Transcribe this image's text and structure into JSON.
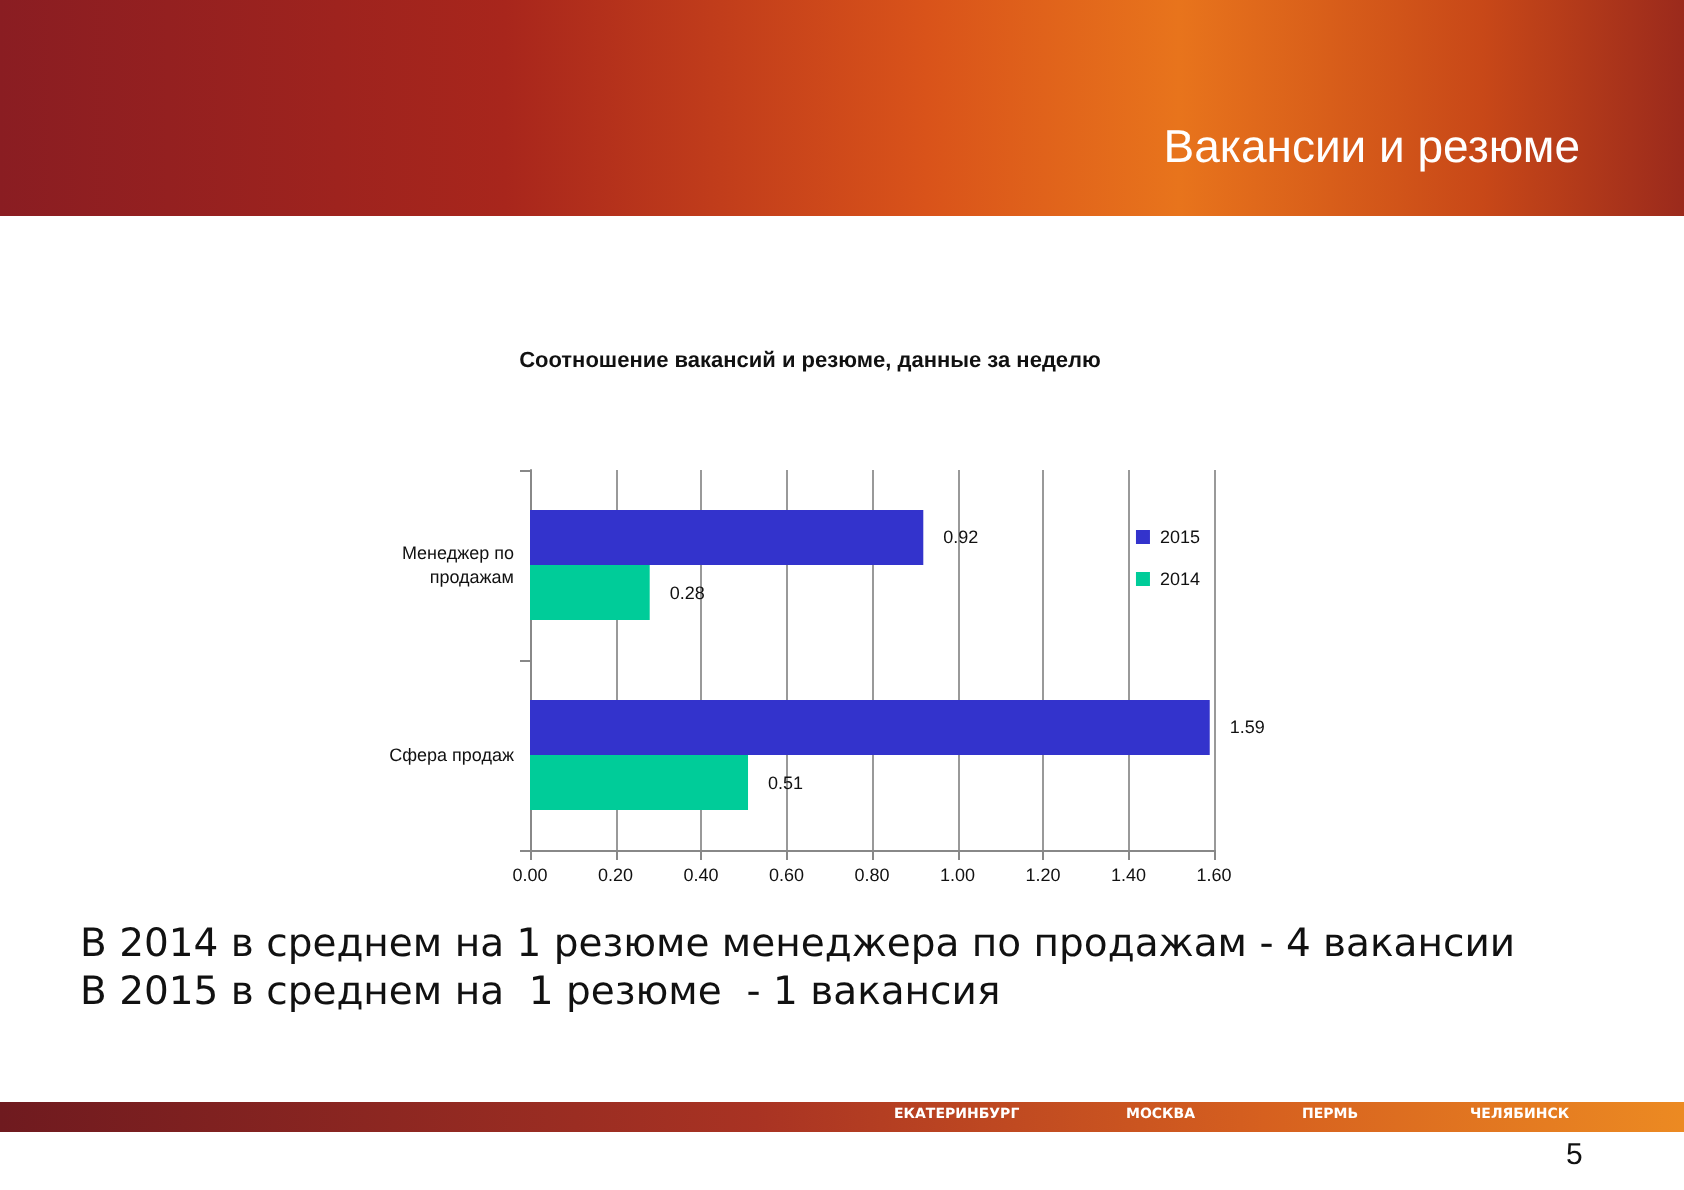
{
  "chart_data": {
    "type": "bar",
    "orientation": "horizontal",
    "title": "Соотношение вакансий и резюме, данные за неделю",
    "categories": [
      "Менеджер по продажам",
      "Сфера продаж"
    ],
    "series": [
      {
        "name": "2015",
        "color": "#3333cc",
        "values": [
          0.92,
          1.59
        ]
      },
      {
        "name": "2014",
        "color": "#00cc99",
        "values": [
          0.28,
          0.51
        ]
      }
    ],
    "xlim": [
      0,
      1.6
    ],
    "xticks": [
      {
        "value": 0,
        "label": "0.00"
      },
      {
        "value": 0.2,
        "label": "0.20"
      },
      {
        "value": 0.4,
        "label": "0.40"
      },
      {
        "value": 0.6,
        "label": "0.60"
      },
      {
        "value": 0.8,
        "label": "0.80"
      },
      {
        "value": 1,
        "label": "1.00"
      },
      {
        "value": 1.2,
        "label": "1.20"
      },
      {
        "value": 1.4,
        "label": "1.40"
      },
      {
        "value": 1.6,
        "label": "1.60"
      }
    ],
    "grid": "x",
    "legend": "top right",
    "data_labels": true,
    "annotations": [
      "Вакансии и резюме",
      "В 2014 в среднем на 1 резюме менеджера по продажам - 4 вакансии",
      "В 2015 в среднем на  1 резюме  - 1 вакансия",
      "ЕКАТЕРИНБУРГ",
      "МОСКВА",
      "ПЕРМЬ",
      "ЧЕЛЯБИНСК",
      "5"
    ]
  }
}
